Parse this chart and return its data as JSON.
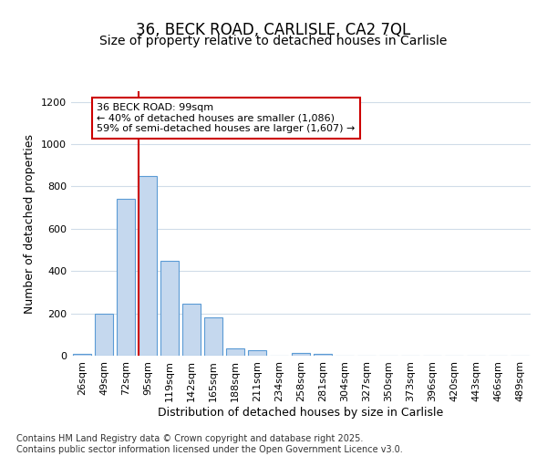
{
  "title_line1": "36, BECK ROAD, CARLISLE, CA2 7QL",
  "title_line2": "Size of property relative to detached houses in Carlisle",
  "xlabel": "Distribution of detached houses by size in Carlisle",
  "ylabel": "Number of detached properties",
  "categories": [
    "26sqm",
    "49sqm",
    "72sqm",
    "95sqm",
    "119sqm",
    "142sqm",
    "165sqm",
    "188sqm",
    "211sqm",
    "234sqm",
    "258sqm",
    "281sqm",
    "304sqm",
    "327sqm",
    "350sqm",
    "373sqm",
    "396sqm",
    "420sqm",
    "443sqm",
    "466sqm",
    "489sqm"
  ],
  "values": [
    10,
    200,
    740,
    850,
    450,
    245,
    180,
    35,
    25,
    0,
    15,
    10,
    0,
    0,
    0,
    0,
    0,
    0,
    0,
    0,
    0
  ],
  "bar_color": "#c5d8ee",
  "bar_edge_color": "#5b9bd5",
  "background_color": "#ffffff",
  "grid_color": "#d0dce8",
  "vline_x": 3,
  "vline_color": "#cc0000",
  "annotation_text": "36 BECK ROAD: 99sqm\n← 40% of detached houses are smaller (1,086)\n59% of semi-detached houses are larger (1,607) →",
  "annotation_box_edgecolor": "#cc0000",
  "ylim": [
    0,
    1250
  ],
  "yticks": [
    0,
    200,
    400,
    600,
    800,
    1000,
    1200
  ],
  "footer_text": "Contains HM Land Registry data © Crown copyright and database right 2025.\nContains public sector information licensed under the Open Government Licence v3.0.",
  "title_fontsize": 12,
  "subtitle_fontsize": 10,
  "axis_label_fontsize": 9,
  "tick_fontsize": 8,
  "annotation_fontsize": 8,
  "footer_fontsize": 7
}
